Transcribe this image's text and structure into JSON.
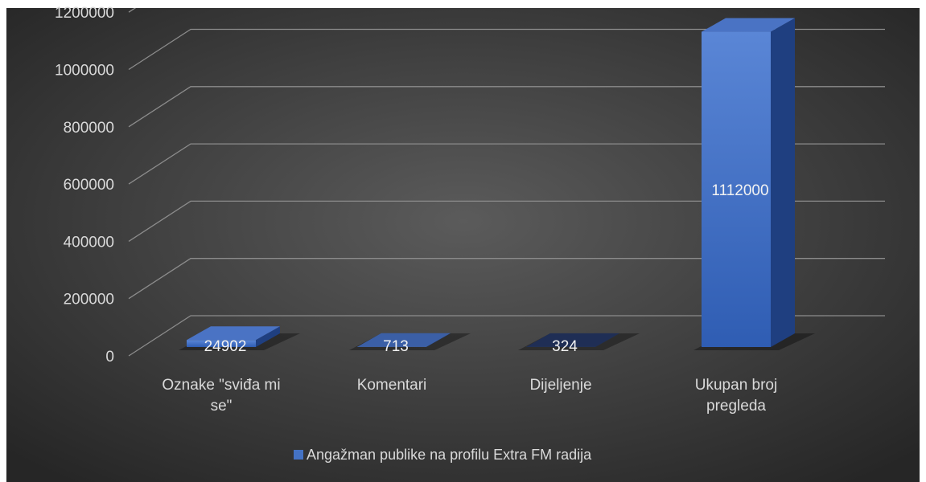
{
  "chart_data": {
    "type": "bar3d",
    "categories": [
      "Oznake \"sviđa mi se\"",
      "Komentari",
      "Dijeljenje",
      "Ukupan broj pregleda"
    ],
    "series": [
      {
        "name": "Angažman publike na profilu Extra FM radija",
        "color": "#4472c4",
        "values": [
          24902,
          713,
          324,
          1112000
        ]
      }
    ],
    "ylim": [
      0,
      1200000
    ],
    "yticks": [
      0,
      200000,
      400000,
      600000,
      800000,
      1000000,
      1200000
    ],
    "grid": true,
    "legend": "bottom"
  }
}
